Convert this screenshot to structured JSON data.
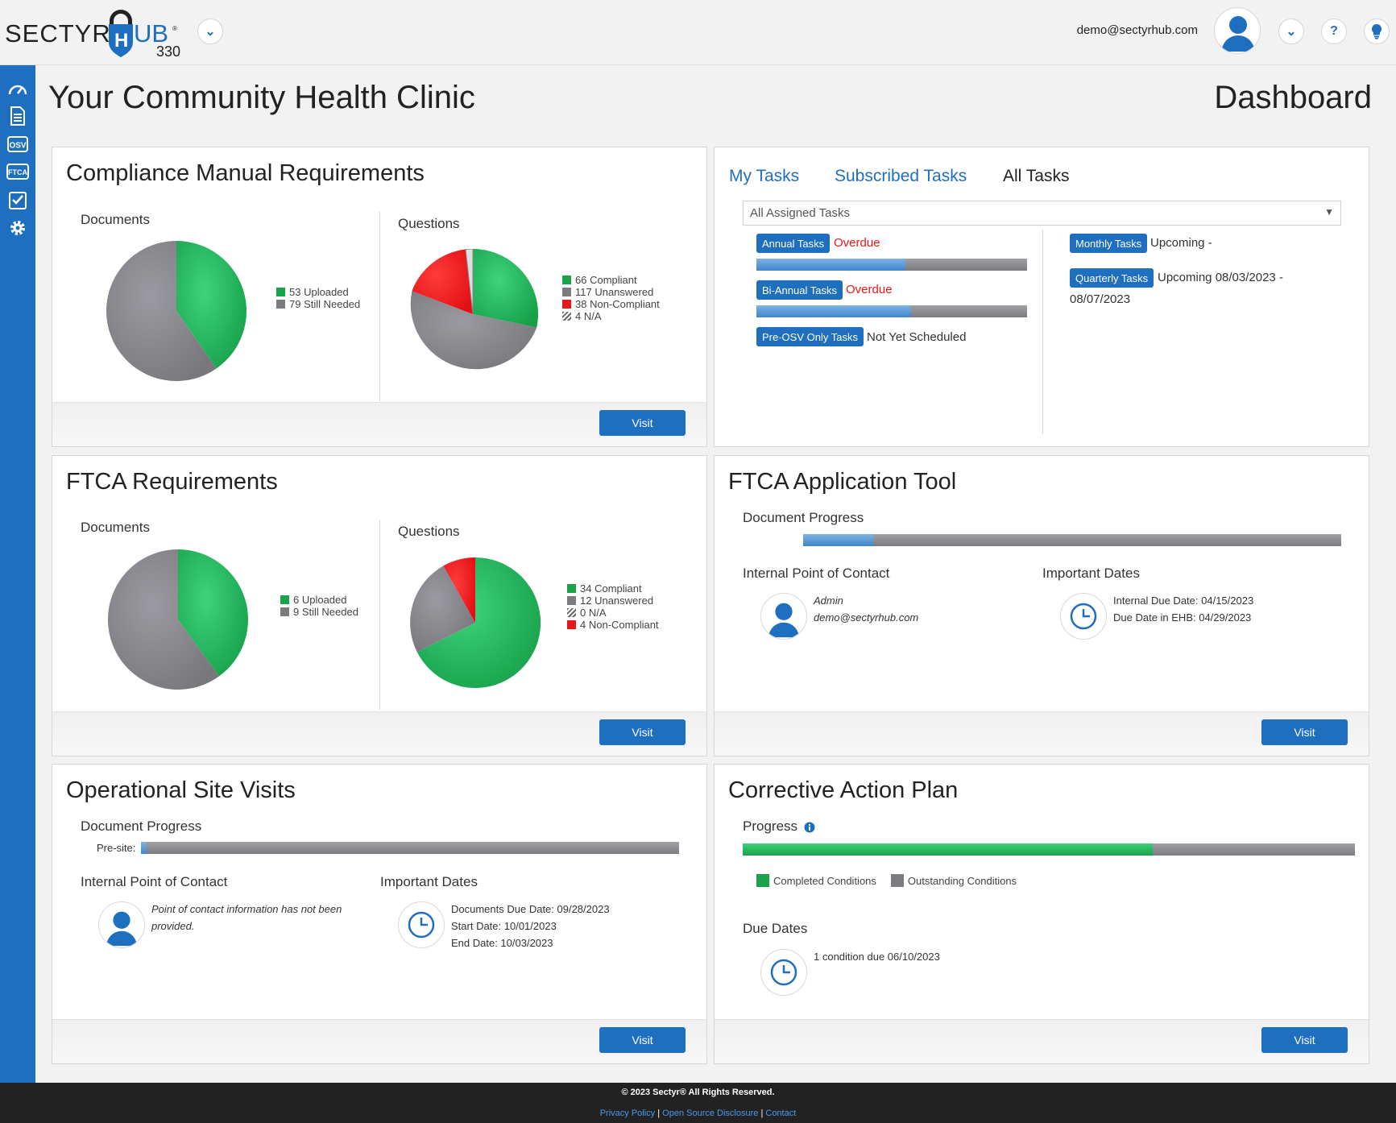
{
  "header": {
    "logo_text": "SECTYRHUB",
    "logo_sub": "330",
    "user_email": "demo@sectyrhub.com"
  },
  "page": {
    "title": "Your Community Health Clinic",
    "section": "Dashboard"
  },
  "cmr": {
    "title": "Compliance Manual Requirements",
    "documents_label": "Documents",
    "questions_label": "Questions",
    "doc_legend": [
      "53 Uploaded",
      "79 Still Needed"
    ],
    "q_legend": [
      "66 Compliant",
      "117 Unanswered",
      "38 Non-Compliant",
      "4 N/A"
    ],
    "visit": "Visit"
  },
  "tasks": {
    "tabs": [
      "My Tasks",
      "Subscribed Tasks",
      "All Tasks"
    ],
    "select_value": "All Assigned Tasks",
    "annual_label": "Annual Tasks",
    "annual_status": "Overdue",
    "annual_progress": 0.55,
    "biannual_label": "Bi-Annual Tasks",
    "biannual_status": "Overdue",
    "biannual_progress": 0.57,
    "preosv_label": "Pre-OSV Only Tasks",
    "preosv_status": "Not Yet Scheduled",
    "monthly_label": "Monthly Tasks",
    "monthly_status": "Upcoming -",
    "quarterly_label": "Quarterly Tasks",
    "quarterly_status": "Upcoming 08/03/2023 -",
    "quarterly_end": "08/07/2023"
  },
  "ftca": {
    "title": "FTCA Requirements",
    "documents_label": "Documents",
    "questions_label": "Questions",
    "doc_legend": [
      "6 Uploaded",
      "9 Still Needed"
    ],
    "q_legend": [
      "34 Compliant",
      "12 Unanswered",
      "0 N/A",
      "4 Non-Compliant"
    ],
    "visit": "Visit"
  },
  "app_tool": {
    "title": "FTCA Application Tool",
    "doc_progress_label": "Document Progress",
    "doc_progress": 0.13,
    "poc_label": "Internal Point of Contact",
    "poc_name": "Admin",
    "poc_email": "demo@sectyrhub.com",
    "dates_label": "Important Dates",
    "internal_due": "Internal Due Date: 04/15/2023",
    "ehb_due": "Due Date in EHB: 04/29/2023",
    "visit": "Visit"
  },
  "osv": {
    "title": "Operational Site Visits",
    "doc_progress_label": "Document Progress",
    "presite_label": "Pre-site:",
    "presite_progress": 0.01,
    "poc_label": "Internal Point of Contact",
    "poc_text": "Point of contact information has not been provided.",
    "dates_label": "Important Dates",
    "docs_due": "Documents Due Date: 09/28/2023",
    "start_date": "Start Date: 10/01/2023",
    "end_date": "End Date: 10/03/2023",
    "visit": "Visit"
  },
  "cap": {
    "title": "Corrective Action Plan",
    "progress_label": "Progress",
    "progress": 0.67,
    "legend_completed": "Completed Conditions",
    "legend_outstanding": "Outstanding Conditions",
    "due_dates_label": "Due Dates",
    "due_text": "1 condition due 06/10/2023",
    "visit": "Visit"
  },
  "footer": {
    "copyright": "© 2023 Sectyr® All Rights Reserved.",
    "link_privacy": "Privacy Policy",
    "link_oss": "Open Source Disclosure",
    "link_contact": "Contact"
  },
  "colors": {
    "brand_blue": "#1e6fbf",
    "green": "#1aa34a",
    "gray": "#7b7b80",
    "red": "#e8161b"
  }
}
